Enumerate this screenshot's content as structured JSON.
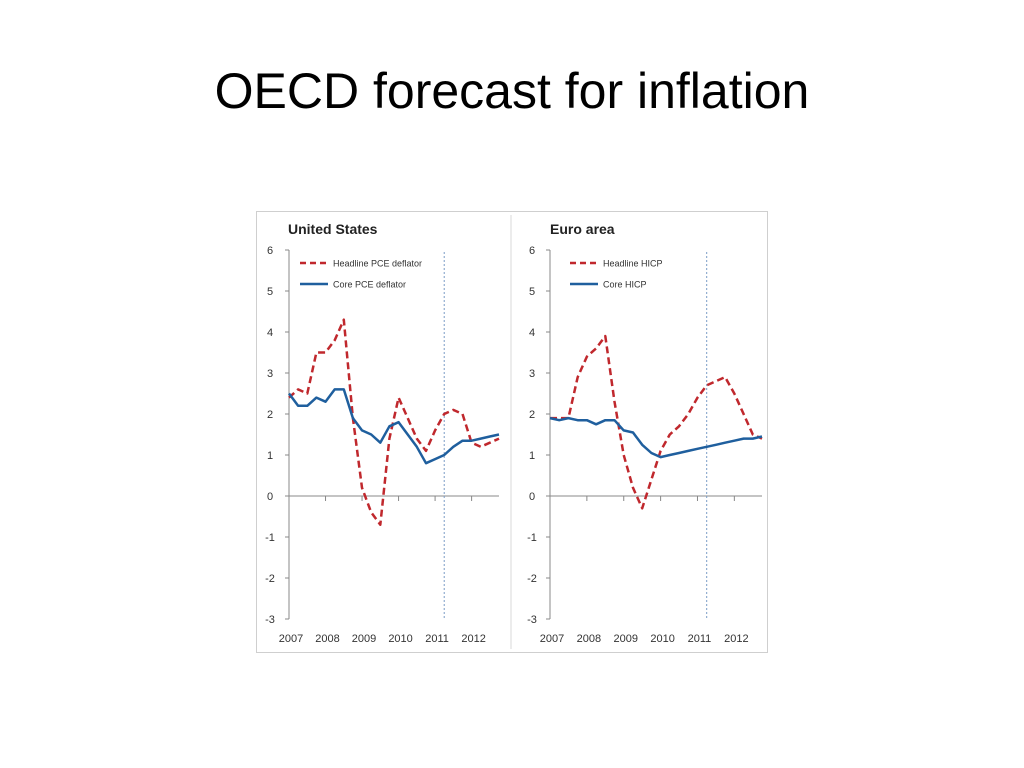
{
  "slide": {
    "title": "OECD forecast for inflation"
  },
  "colors": {
    "headline": "#c0282d",
    "core": "#1f5f9e",
    "forecast_line": "#7a9cc6",
    "axis": "#888888"
  },
  "chart_data": [
    {
      "type": "line",
      "title": "United States",
      "xlabel": "",
      "ylabel": "",
      "xlim": [
        2007.0,
        2012.75
      ],
      "ylim": [
        -3,
        6
      ],
      "yticks": [
        6,
        5,
        4,
        3,
        2,
        1,
        0,
        -1,
        -2,
        -3
      ],
      "xticks": [
        "2007",
        "2008",
        "2009",
        "2010",
        "2011",
        "2012"
      ],
      "forecast_start": 2011.25,
      "legend_position": "top-left",
      "series": [
        {
          "name": "Headline PCE deflator",
          "style": "dashed",
          "color": "#c0282d",
          "x": [
            2007.0,
            2007.25,
            2007.5,
            2007.75,
            2008.0,
            2008.25,
            2008.5,
            2008.75,
            2009.0,
            2009.25,
            2009.5,
            2009.75,
            2010.0,
            2010.25,
            2010.5,
            2010.75,
            2011.0,
            2011.25,
            2011.5,
            2011.75,
            2012.0,
            2012.25,
            2012.5,
            2012.75
          ],
          "y": [
            2.4,
            2.6,
            2.5,
            3.5,
            3.5,
            3.8,
            4.3,
            1.9,
            0.2,
            -0.4,
            -0.7,
            1.4,
            2.4,
            1.9,
            1.4,
            1.1,
            1.6,
            2.0,
            2.1,
            2.0,
            1.3,
            1.2,
            1.3,
            1.4
          ]
        },
        {
          "name": "Core PCE deflator",
          "style": "solid",
          "color": "#1f5f9e",
          "x": [
            2007.0,
            2007.25,
            2007.5,
            2007.75,
            2008.0,
            2008.25,
            2008.5,
            2008.75,
            2009.0,
            2009.25,
            2009.5,
            2009.75,
            2010.0,
            2010.25,
            2010.5,
            2010.75,
            2011.0,
            2011.25,
            2011.5,
            2011.75,
            2012.0,
            2012.25,
            2012.5,
            2012.75
          ],
          "y": [
            2.5,
            2.2,
            2.2,
            2.4,
            2.3,
            2.6,
            2.6,
            1.9,
            1.6,
            1.5,
            1.3,
            1.7,
            1.8,
            1.5,
            1.2,
            0.8,
            0.9,
            1.0,
            1.2,
            1.35,
            1.35,
            1.4,
            1.45,
            1.5
          ]
        }
      ]
    },
    {
      "type": "line",
      "title": "Euro area",
      "xlabel": "",
      "ylabel": "",
      "xlim": [
        2007.0,
        2012.75
      ],
      "ylim": [
        -3,
        6
      ],
      "yticks": [
        6,
        5,
        4,
        3,
        2,
        1,
        0,
        -1,
        -2,
        -3
      ],
      "xticks": [
        "2007",
        "2008",
        "2009",
        "2010",
        "2011",
        "2012"
      ],
      "forecast_start": 2011.25,
      "legend_position": "top-left",
      "series": [
        {
          "name": "Headline HICP",
          "style": "dashed",
          "color": "#c0282d",
          "x": [
            2007.0,
            2007.25,
            2007.5,
            2007.75,
            2008.0,
            2008.25,
            2008.5,
            2008.75,
            2009.0,
            2009.25,
            2009.5,
            2009.75,
            2010.0,
            2010.25,
            2010.5,
            2010.75,
            2011.0,
            2011.25,
            2011.5,
            2011.75,
            2012.0,
            2012.25,
            2012.5,
            2012.75
          ],
          "y": [
            1.9,
            1.9,
            1.9,
            2.9,
            3.4,
            3.6,
            3.9,
            2.3,
            1.0,
            0.2,
            -0.3,
            0.4,
            1.1,
            1.5,
            1.7,
            2.0,
            2.4,
            2.7,
            2.8,
            2.9,
            2.5,
            2.0,
            1.5,
            1.4
          ]
        },
        {
          "name": "Core HICP",
          "style": "solid",
          "color": "#1f5f9e",
          "x": [
            2007.0,
            2007.25,
            2007.5,
            2007.75,
            2008.0,
            2008.25,
            2008.5,
            2008.75,
            2009.0,
            2009.25,
            2009.5,
            2009.75,
            2010.0,
            2010.25,
            2010.5,
            2010.75,
            2011.0,
            2011.25,
            2011.5,
            2011.75,
            2012.0,
            2012.25,
            2012.5,
            2012.75
          ],
          "y": [
            1.9,
            1.85,
            1.9,
            1.85,
            1.85,
            1.75,
            1.85,
            1.85,
            1.6,
            1.55,
            1.25,
            1.05,
            0.95,
            1.0,
            1.05,
            1.1,
            1.15,
            1.2,
            1.25,
            1.3,
            1.35,
            1.4,
            1.4,
            1.45
          ]
        }
      ]
    }
  ]
}
